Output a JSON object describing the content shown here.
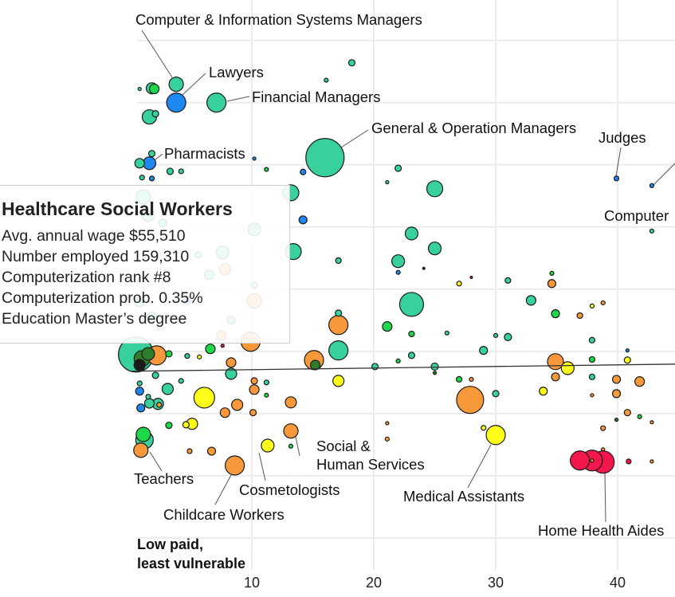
{
  "chart_data": {
    "type": "scatter",
    "xlim": [
      -10.65,
      44.7
    ],
    "ylim": [
      -19,
      173
    ],
    "x_ticks": [
      "10",
      "20",
      "30",
      "40"
    ],
    "x_tick_values": [
      10,
      20,
      30,
      40
    ],
    "y_grid_values": [
      0,
      20,
      40,
      60,
      80,
      100,
      120,
      140,
      160
    ],
    "grid": true,
    "corner_label": [
      "Low paid,",
      "least vulnerable"
    ],
    "colors": {
      "teal": "#38d09b",
      "blue": "#1e88f0",
      "green": "#1ed84a",
      "darkgreen": "#2e7d2a",
      "orange": "#f7993a",
      "yellow": "#ffff1a",
      "red": "#f4174b",
      "black": "#1a1a1a"
    },
    "point_fields": [
      "x",
      "y",
      "employed_thousands",
      "color"
    ],
    "points": [
      [
        3.8,
        145.9,
        295,
        "teal"
      ],
      [
        3.8,
        140,
        524,
        "blue"
      ],
      [
        7.1,
        140,
        524,
        "teal"
      ],
      [
        16.0,
        122.3,
        2097,
        "teal"
      ],
      [
        1.6,
        120.5,
        233,
        "blue"
      ],
      [
        39.9,
        115.6,
        33,
        "blue"
      ],
      [
        42.8,
        113.3,
        23,
        "blue"
      ],
      [
        42.8,
        98.7,
        23,
        "teal"
      ],
      [
        1.8,
        144.6,
        178,
        "teal"
      ],
      [
        2.0,
        144.4,
        131,
        "green"
      ],
      [
        1.6,
        135.4,
        295,
        "teal"
      ],
      [
        2.1,
        136.4,
        58,
        "teal"
      ],
      [
        0.8,
        144.4,
        15,
        "teal"
      ],
      [
        18.2,
        152.8,
        58,
        "teal"
      ],
      [
        16.1,
        147.2,
        23,
        "teal"
      ],
      [
        1.8,
        123.6,
        58,
        "teal"
      ],
      [
        0.8,
        120.5,
        131,
        "teal"
      ],
      [
        3.3,
        117.9,
        58,
        "teal"
      ],
      [
        4.2,
        117.9,
        33,
        "teal"
      ],
      [
        1.8,
        115.6,
        33,
        "blue"
      ],
      [
        1.0,
        115.9,
        33,
        "teal"
      ],
      [
        10.2,
        122,
        15,
        "blue"
      ],
      [
        11.2,
        118.5,
        23,
        "green"
      ],
      [
        14.2,
        117.7,
        45,
        "blue"
      ],
      [
        22.0,
        118.9,
        58,
        "teal"
      ],
      [
        21.1,
        114.4,
        15,
        "teal"
      ],
      [
        25.0,
        112.3,
        364,
        "teal"
      ],
      [
        13.2,
        111,
        364,
        "teal"
      ],
      [
        14.2,
        102.3,
        91,
        "blue"
      ],
      [
        23.1,
        97.9,
        233,
        "teal"
      ],
      [
        25.0,
        93.1,
        233,
        "teal"
      ],
      [
        22.0,
        89,
        233,
        "teal"
      ],
      [
        17.1,
        89.2,
        45,
        "teal"
      ],
      [
        22.0,
        85.4,
        23,
        "blue"
      ],
      [
        24.1,
        86.7,
        8,
        "black"
      ],
      [
        13.4,
        92.1,
        364,
        "teal"
      ],
      [
        27.0,
        81.8,
        33,
        "yellow"
      ],
      [
        28.0,
        83.8,
        8,
        "red"
      ],
      [
        31.0,
        82.8,
        45,
        "teal"
      ],
      [
        34.6,
        85.1,
        23,
        "green"
      ],
      [
        34.6,
        81.8,
        91,
        "orange"
      ],
      [
        23.1,
        75.1,
        819,
        "teal"
      ],
      [
        32.9,
        76.4,
        131,
        "teal"
      ],
      [
        34.9,
        72.1,
        91,
        "green"
      ],
      [
        36.9,
        71.5,
        45,
        "orange"
      ],
      [
        37.9,
        74.6,
        23,
        "yellow"
      ],
      [
        38.8,
        75.6,
        23,
        "orange"
      ],
      [
        17.1,
        72.3,
        58,
        "teal"
      ],
      [
        21.1,
        68,
        131,
        "green"
      ],
      [
        17.1,
        68.5,
        524,
        "orange"
      ],
      [
        23.1,
        65.6,
        45,
        "green"
      ],
      [
        26.0,
        65.9,
        23,
        "teal"
      ],
      [
        29.0,
        60.3,
        91,
        "teal"
      ],
      [
        30.0,
        65.1,
        23,
        "teal"
      ],
      [
        31.0,
        64.6,
        74,
        "teal"
      ],
      [
        37.9,
        63.6,
        45,
        "teal"
      ],
      [
        37.9,
        51.8,
        45,
        "teal"
      ],
      [
        37.9,
        57.4,
        45,
        "green"
      ],
      [
        40.8,
        57.2,
        58,
        "yellow"
      ],
      [
        40.8,
        60.3,
        15,
        "blue"
      ],
      [
        17.1,
        60.3,
        524,
        "teal"
      ],
      [
        9.9,
        63.1,
        524,
        "orange"
      ],
      [
        15.1,
        57.2,
        524,
        "orange"
      ],
      [
        15.2,
        55.6,
        131,
        "darkgreen"
      ],
      [
        20.1,
        55.1,
        58,
        "teal"
      ],
      [
        22,
        56.9,
        23,
        "green"
      ],
      [
        23.1,
        58.7,
        58,
        "teal"
      ],
      [
        25.0,
        55.1,
        74,
        "teal"
      ],
      [
        34.9,
        56.7,
        364,
        "orange"
      ],
      [
        35.9,
        54.6,
        233,
        "yellow"
      ],
      [
        34.9,
        51.8,
        91,
        "orange"
      ],
      [
        33.9,
        47.2,
        91,
        "yellow"
      ],
      [
        39.9,
        51,
        91,
        "orange"
      ],
      [
        41.8,
        50.3,
        131,
        "orange"
      ],
      [
        39.9,
        46.4,
        91,
        "orange"
      ],
      [
        37.9,
        45.9,
        15,
        "orange"
      ],
      [
        27.9,
        44.4,
        1052,
        "orange"
      ],
      [
        30.0,
        46.4,
        58,
        "teal"
      ],
      [
        28.0,
        51.0,
        23,
        "orange"
      ],
      [
        27.0,
        51.0,
        45,
        "green"
      ],
      [
        25.0,
        53.1,
        15,
        "darkgreen"
      ],
      [
        40.8,
        40.3,
        58,
        "orange"
      ],
      [
        41.8,
        39.0,
        23,
        "green"
      ],
      [
        42.8,
        37.2,
        15,
        "orange"
      ],
      [
        30.0,
        33.1,
        524,
        "yellow"
      ],
      [
        29.0,
        35.4,
        33,
        "yellow"
      ],
      [
        21.1,
        36.9,
        15,
        "orange"
      ],
      [
        21.1,
        31.8,
        23,
        "orange"
      ],
      [
        37.9,
        24.9,
        15,
        "orange"
      ],
      [
        36.9,
        24.9,
        524,
        "red"
      ],
      [
        37.9,
        24.9,
        615,
        "red"
      ],
      [
        38.8,
        24.4,
        713,
        "red"
      ],
      [
        40.9,
        24.6,
        33,
        "red"
      ],
      [
        42.8,
        24.6,
        15,
        "orange"
      ],
      [
        38.8,
        28.5,
        15,
        "orange"
      ],
      [
        38.8,
        35.3,
        33,
        "orange"
      ],
      [
        39.9,
        38.0,
        15,
        "darkgreen"
      ],
      [
        0.5,
        59,
        1762,
        "teal"
      ],
      [
        1.0,
        57.7,
        364,
        "darkgreen"
      ],
      [
        1.5,
        59.2,
        233,
        "darkgreen"
      ],
      [
        2.2,
        58.7,
        524,
        "orange"
      ],
      [
        0.8,
        55.6,
        178,
        "black"
      ],
      [
        3.2,
        59.2,
        58,
        "green"
      ],
      [
        6.6,
        60.8,
        131,
        "green"
      ],
      [
        7.6,
        61.8,
        15,
        "red"
      ],
      [
        4.7,
        58.5,
        33,
        "teal"
      ],
      [
        5.7,
        58.2,
        23,
        "yellow"
      ],
      [
        8.3,
        56.4,
        131,
        "orange"
      ],
      [
        8.3,
        52.8,
        178,
        "teal"
      ],
      [
        2.1,
        52.3,
        58,
        "teal"
      ],
      [
        4.2,
        50.5,
        33,
        "teal"
      ],
      [
        0.8,
        49.7,
        33,
        "teal"
      ],
      [
        0.8,
        47.2,
        91,
        "blue"
      ],
      [
        3.1,
        47.9,
        178,
        "teal"
      ],
      [
        1.5,
        45.4,
        33,
        "teal"
      ],
      [
        6.1,
        45.1,
        615,
        "yellow"
      ],
      [
        10.2,
        47.7,
        131,
        "orange"
      ],
      [
        10.2,
        50.5,
        58,
        "orange"
      ],
      [
        11.2,
        45.9,
        23,
        "green"
      ],
      [
        11.2,
        50.0,
        33,
        "teal"
      ],
      [
        17.1,
        50.5,
        178,
        "yellow"
      ],
      [
        2.3,
        43.1,
        178,
        "teal"
      ],
      [
        1.6,
        43.3,
        131,
        "teal"
      ],
      [
        0.9,
        41.8,
        91,
        "blue"
      ],
      [
        5.1,
        36.7,
        178,
        "yellow"
      ],
      [
        4.6,
        36.4,
        58,
        "yellow"
      ],
      [
        3.2,
        36.2,
        58,
        "green"
      ],
      [
        1.1,
        33.3,
        295,
        "green"
      ],
      [
        1.2,
        31.5,
        440,
        "teal"
      ],
      [
        0.9,
        28.2,
        295,
        "orange"
      ],
      [
        4.9,
        27.9,
        33,
        "orange"
      ],
      [
        6.7,
        27.9,
        91,
        "orange"
      ],
      [
        8.6,
        23.3,
        524,
        "orange"
      ],
      [
        11.3,
        29.7,
        233,
        "yellow"
      ],
      [
        13.2,
        34.4,
        295,
        "orange"
      ],
      [
        13.2,
        29.5,
        23,
        "green"
      ],
      [
        2.4,
        42.8,
        33,
        "orange"
      ],
      [
        8.8,
        42.8,
        178,
        "orange"
      ],
      [
        7.8,
        40.3,
        131,
        "orange"
      ],
      [
        10.1,
        40.3,
        58,
        "orange"
      ],
      [
        13.2,
        43.6,
        178,
        "orange"
      ],
      [
        1.1,
        109.7,
        295,
        "teal"
      ],
      [
        1.5,
        103.8,
        233,
        "teal"
      ],
      [
        2.7,
        101.3,
        91,
        "teal"
      ],
      [
        7.6,
        91.8,
        233,
        "teal"
      ],
      [
        10.2,
        99.2,
        233,
        "teal"
      ],
      [
        5.6,
        91.0,
        58,
        "teal"
      ],
      [
        6.5,
        84.6,
        131,
        "teal"
      ],
      [
        7.8,
        86.4,
        178,
        "orange"
      ],
      [
        10.2,
        81.3,
        58,
        "teal"
      ],
      [
        10.2,
        76.2,
        295,
        "orange"
      ],
      [
        0.8,
        75.9,
        131,
        "teal"
      ],
      [
        1.8,
        71.0,
        131,
        "teal"
      ],
      [
        4.7,
        76.4,
        91,
        "blue"
      ],
      [
        8.3,
        70.0,
        91,
        "teal"
      ],
      [
        7.5,
        65.1,
        131,
        "orange"
      ]
    ],
    "trend_line": [
      [
        0,
        53.6
      ],
      [
        44.7,
        55.9
      ]
    ],
    "annotations": [
      {
        "text": "Computer & Information Systems Managers"
      },
      {
        "text": "Lawyers"
      },
      {
        "text": "Financial Managers"
      },
      {
        "text": "General & Operation Managers"
      },
      {
        "text": "Pharmacists"
      },
      {
        "text": "Judges"
      },
      {
        "text": "Computer"
      },
      {
        "text": "Teachers"
      },
      {
        "text": "Childcare Workers"
      },
      {
        "text": "Cosmetologists"
      },
      {
        "text": "Social &"
      },
      {
        "text": "Human Services"
      },
      {
        "text": "Medical Assistants"
      },
      {
        "text": "Home Health Aides"
      }
    ]
  },
  "tooltip": {
    "title": "Healthcare Social Workers",
    "lines": [
      "Avg. annual wage $55,510",
      "Number employed 159,310",
      "Computerization rank #8",
      "Computerization prob. 0.35%",
      "Education Master’s degree"
    ]
  }
}
